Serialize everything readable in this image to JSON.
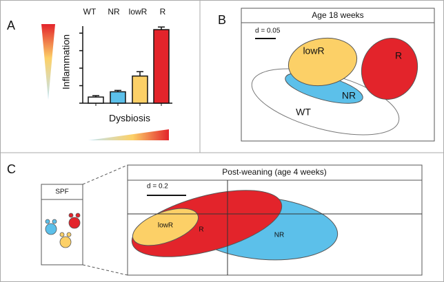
{
  "chart_data": {
    "type": "bar",
    "categories": [
      "WT",
      "NR",
      "lowR",
      "R"
    ],
    "values": [
      0.35,
      0.65,
      1.55,
      4.2
    ],
    "errors": [
      0.08,
      0.08,
      0.25,
      0.15
    ],
    "colors": [
      "#ffffff",
      "#5cc0ea",
      "#fcd067",
      "#e3242b"
    ],
    "ylim": [
      0,
      4.4
    ],
    "yticks": [
      0,
      1,
      2,
      3,
      4
    ],
    "ylabel": "Inflammation",
    "xlabel": "Dysbiosis"
  },
  "panel_labels": [
    "A",
    "B",
    "C"
  ],
  "panel_b": {
    "title": "Age 18 weeks",
    "scale": "d = 0.05",
    "groups": [
      "lowR",
      "R",
      "NR",
      "WT"
    ]
  },
  "panel_c": {
    "inset": "SPF",
    "title": "Post-weaning (age 4 weeks)",
    "scale": "d = 0.2",
    "groups": [
      "lowR",
      "R",
      "NR"
    ]
  }
}
